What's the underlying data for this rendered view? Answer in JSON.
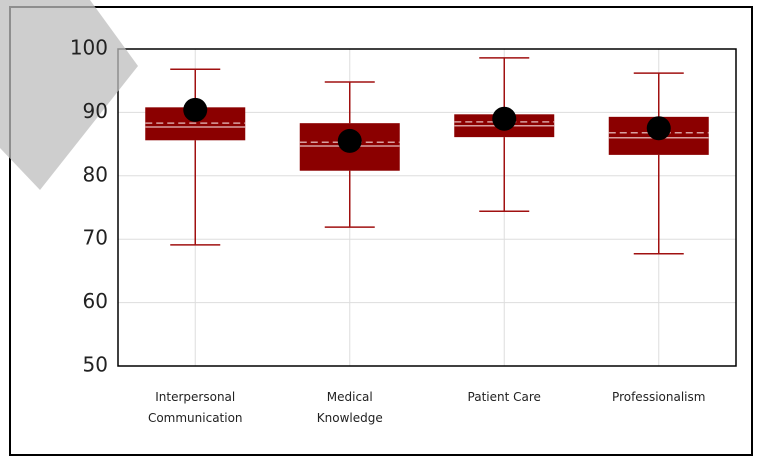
{
  "chart_data": {
    "type": "box",
    "categories": [
      [
        "Interpersonal",
        "Communication"
      ],
      [
        "Medical",
        "Knowledge"
      ],
      [
        "Patient Care"
      ],
      [
        "Professionalism"
      ]
    ],
    "boxes": [
      {
        "min": 69.1,
        "q1": 85.6,
        "median": 87.7,
        "mean": 88.3,
        "q3": 90.8,
        "max": 96.8,
        "point": 90.4
      },
      {
        "min": 71.9,
        "q1": 80.8,
        "median": 84.7,
        "mean": 85.3,
        "q3": 88.3,
        "max": 94.8,
        "point": 85.5
      },
      {
        "min": 74.4,
        "q1": 86.1,
        "median": 87.9,
        "mean": 88.5,
        "q3": 89.7,
        "max": 98.6,
        "point": 89.0
      },
      {
        "min": 67.7,
        "q1": 83.3,
        "median": 86.0,
        "mean": 86.8,
        "q3": 89.3,
        "max": 96.2,
        "point": 87.5
      }
    ],
    "color": "#8b0000",
    "whisker_color": "#a01010",
    "point_color": "#000000",
    "ylim": [
      50,
      100
    ],
    "yticks": [
      50,
      60,
      70,
      80,
      90,
      100
    ],
    "grid": true
  }
}
